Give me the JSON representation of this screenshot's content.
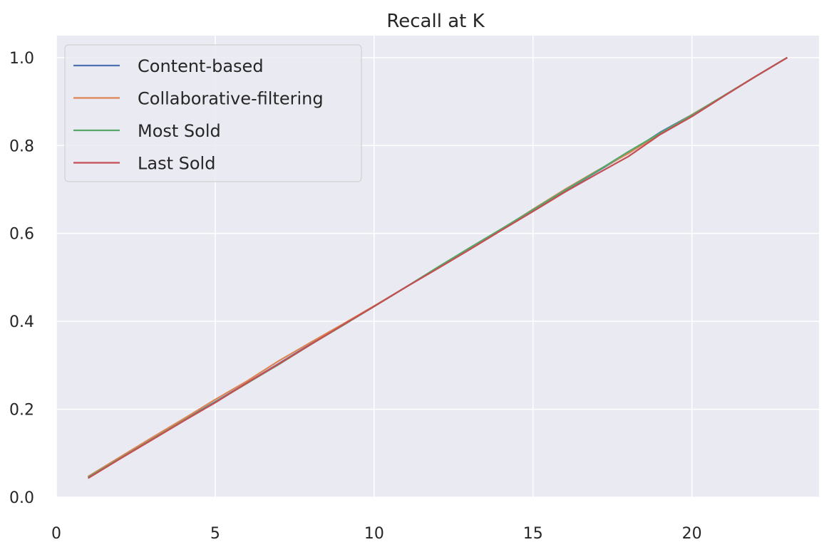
{
  "chart_data": {
    "type": "line",
    "title": "Recall at K",
    "xlabel": "",
    "ylabel": "",
    "xlim": [
      0,
      24
    ],
    "ylim": [
      0,
      1.05
    ],
    "xticks": [
      0,
      5,
      10,
      15,
      20
    ],
    "xtick_labels": [
      "0",
      "5",
      "10",
      "15",
      "20"
    ],
    "yticks": [
      0.0,
      0.2,
      0.4,
      0.6,
      0.8,
      1.0
    ],
    "ytick_labels": [
      "0.0",
      "0.2",
      "0.4",
      "0.6",
      "0.8",
      "1.0"
    ],
    "grid": true,
    "legend_position": "top-left",
    "background_color": "#eaeaf2",
    "grid_color": "#ffffff",
    "x": [
      1,
      2,
      3,
      4,
      5,
      6,
      7,
      8,
      9,
      10,
      11,
      12,
      13,
      14,
      15,
      16,
      17,
      18,
      19,
      20,
      21,
      22,
      23
    ],
    "series": [
      {
        "name": "Content-based",
        "color": "#4c72b0",
        "values": [
          0.046,
          0.089,
          0.132,
          0.175,
          0.217,
          0.26,
          0.304,
          0.348,
          0.391,
          0.434,
          0.478,
          0.522,
          0.565,
          0.609,
          0.652,
          0.697,
          0.74,
          0.783,
          0.83,
          0.87,
          0.913,
          0.957,
          1.0
        ]
      },
      {
        "name": "Collaborative-filtering",
        "color": "#dd8452",
        "values": [
          0.047,
          0.091,
          0.135,
          0.178,
          0.222,
          0.264,
          0.31,
          0.352,
          0.393,
          0.435,
          0.478,
          0.521,
          0.565,
          0.609,
          0.655,
          0.7,
          0.742,
          0.782,
          0.827,
          0.87,
          0.913,
          0.957,
          1.0
        ]
      },
      {
        "name": "Most Sold",
        "color": "#55a868",
        "values": [
          0.045,
          0.088,
          0.131,
          0.174,
          0.216,
          0.259,
          0.302,
          0.347,
          0.39,
          0.434,
          0.478,
          0.523,
          0.567,
          0.61,
          0.654,
          0.698,
          0.741,
          0.786,
          0.828,
          0.869,
          0.913,
          0.957,
          1.0
        ]
      },
      {
        "name": "Last Sold",
        "color": "#c44e52",
        "values": [
          0.043,
          0.087,
          0.13,
          0.173,
          0.215,
          0.26,
          0.303,
          0.347,
          0.391,
          0.434,
          0.478,
          0.52,
          0.563,
          0.607,
          0.65,
          0.694,
          0.735,
          0.775,
          0.825,
          0.866,
          0.912,
          0.957,
          1.0
        ]
      }
    ]
  }
}
